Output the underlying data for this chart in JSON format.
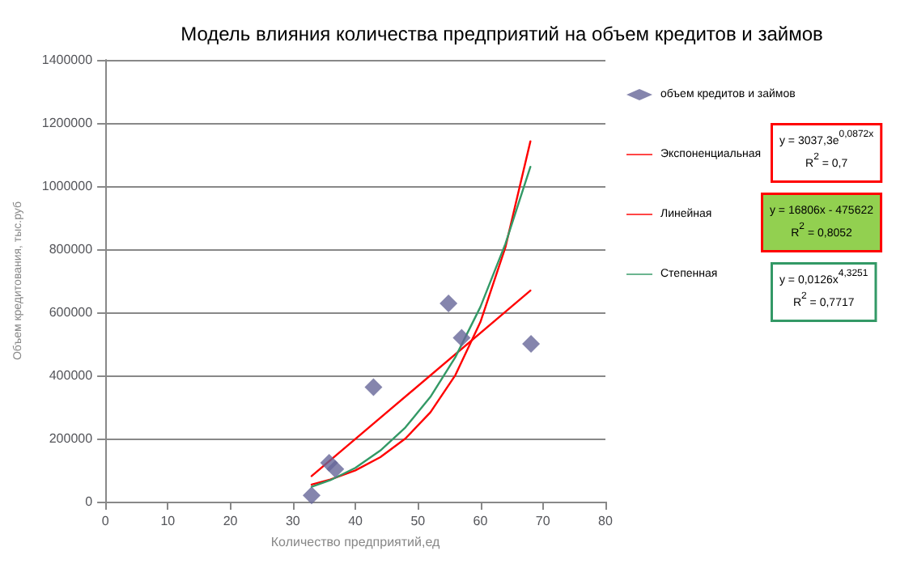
{
  "chart_data": {
    "type": "scatter",
    "title": "Модель влияния количества предприятий на объем кредитов и займов",
    "xlabel": "Количество предприятий,ед",
    "ylabel": "Объем кредитования, тыс.руб",
    "xlim": [
      0,
      80
    ],
    "xticks": [
      0,
      10,
      20,
      30,
      40,
      50,
      60,
      70,
      80
    ],
    "ylim": [
      0,
      1400000
    ],
    "yticks": [
      0,
      200000,
      400000,
      600000,
      800000,
      1000000,
      1200000,
      1400000
    ],
    "grid": "y",
    "legend": "right",
    "series": [
      {
        "name": "объем кредитов и займов",
        "color": "#666699",
        "marker": "diamond",
        "x": [
          33,
          35.8,
          36.8,
          42.9,
          54.9,
          57,
          68.1
        ],
        "values": [
          20000,
          123000,
          103000,
          363000,
          628000,
          519000,
          500000
        ]
      },
      {
        "name": "Экспоненциальная",
        "type": "line",
        "marker": "none",
        "color": "#ff0000",
        "x": [
          33,
          36,
          40,
          44,
          48,
          52,
          56,
          60,
          64,
          68
        ],
        "values": [
          54000,
          70000,
          99000,
          141000,
          200000,
          283000,
          401000,
          569000,
          806000,
          1142000
        ]
      },
      {
        "name": "Линейная",
        "type": "line",
        "marker": "none",
        "color": "#ff0000",
        "x": [
          33,
          68
        ],
        "values": [
          81000,
          669000
        ]
      },
      {
        "name": "Степенная",
        "type": "line",
        "marker": "none",
        "color": "#339966",
        "x": [
          33,
          36,
          40,
          44,
          48,
          52,
          56,
          60,
          64,
          68
        ],
        "values": [
          47000,
          68000,
          107000,
          162000,
          235000,
          332000,
          458000,
          617000,
          817000,
          1061000
        ]
      }
    ],
    "annotations": [
      "y = 3037,3e$^{0,0872x}$\nR$^{2}$ = 0,7",
      "y = 16806x - 475622\nR$^{2}$ = 0,8052",
      "y = 0,0126x$^{4,3251}$\nR$^{2}$ = 0,7717"
    ]
  }
}
